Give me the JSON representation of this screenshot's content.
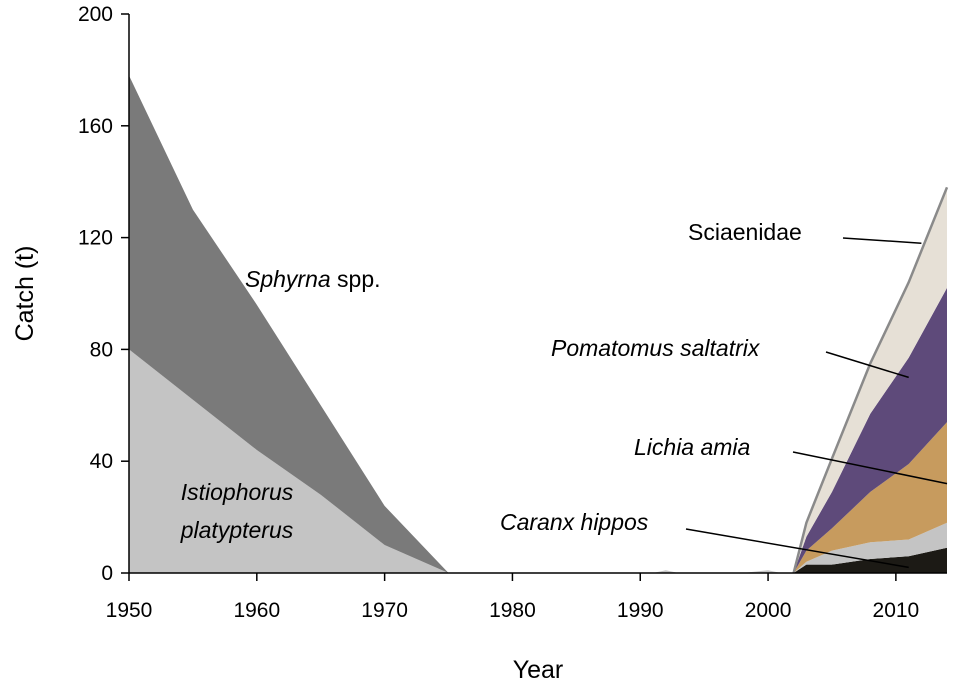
{
  "chart_data": {
    "type": "area",
    "xlabel": "Year",
    "ylabel": "Catch (t)",
    "xlim": [
      1950,
      2014
    ],
    "ylim": [
      0,
      200
    ],
    "x_ticks": [
      1950,
      1960,
      1970,
      1980,
      1990,
      2000,
      2010
    ],
    "y_ticks": [
      0,
      40,
      80,
      120,
      160,
      200
    ],
    "stacked": true,
    "series": [
      {
        "name": "Istiophorus platypterus",
        "color": "#c4c4c4",
        "points": [
          [
            1950,
            80
          ],
          [
            1955,
            62
          ],
          [
            1960,
            44
          ],
          [
            1965,
            28
          ],
          [
            1970,
            10
          ],
          [
            1975,
            0
          ],
          [
            2014,
            0
          ]
        ]
      },
      {
        "name": "Sphyrna spp.",
        "color": "#7a7a7a",
        "points": [
          [
            1950,
            98
          ],
          [
            1955,
            68
          ],
          [
            1960,
            52
          ],
          [
            1965,
            32
          ],
          [
            1970,
            14
          ],
          [
            1975,
            0
          ],
          [
            2014,
            0
          ]
        ]
      },
      {
        "name": "Caranx hippos",
        "color": "#1c1a15",
        "points": [
          [
            1975,
            0
          ],
          [
            1992,
            0
          ],
          [
            2002,
            0
          ],
          [
            2003,
            3
          ],
          [
            2005,
            3
          ],
          [
            2008,
            5
          ],
          [
            2011,
            6
          ],
          [
            2014,
            9
          ]
        ]
      },
      {
        "name": "Lichia amia",
        "color": "#c4c4c4",
        "points": [
          [
            1975,
            0
          ],
          [
            1991,
            0
          ],
          [
            1992,
            1
          ],
          [
            1993,
            0
          ],
          [
            1998,
            0
          ],
          [
            2000,
            1
          ],
          [
            2001,
            0
          ],
          [
            2002,
            0
          ],
          [
            2003,
            1
          ],
          [
            2005,
            5
          ],
          [
            2008,
            6
          ],
          [
            2011,
            6
          ],
          [
            2014,
            9
          ]
        ]
      },
      {
        "name": "Lichia amia",
        "color": "#c79b5e",
        "points": [
          [
            1975,
            0
          ],
          [
            2002,
            0
          ],
          [
            2003,
            4
          ],
          [
            2005,
            8
          ],
          [
            2008,
            18
          ],
          [
            2011,
            27
          ],
          [
            2014,
            36
          ]
        ]
      },
      {
        "name": "Pomatomus saltatrix",
        "color": "#5e4a7a",
        "points": [
          [
            1975,
            0
          ],
          [
            2002,
            0
          ],
          [
            2003,
            5
          ],
          [
            2005,
            13
          ],
          [
            2008,
            28
          ],
          [
            2011,
            38
          ],
          [
            2014,
            48
          ]
        ]
      },
      {
        "name": "Sciaenidae",
        "color": "#e6e0d6",
        "points": [
          [
            1975,
            0
          ],
          [
            2002,
            0
          ],
          [
            2003,
            5
          ],
          [
            2005,
            12
          ],
          [
            2008,
            18
          ],
          [
            2011,
            27
          ],
          [
            2014,
            36
          ]
        ]
      }
    ],
    "annotations": [
      {
        "text_parts": [
          {
            "t": "Sphyrna",
            "italic": true
          },
          {
            "t": " spp.",
            "italic": false
          }
        ]
      },
      {
        "lines": [
          "Istiophorus",
          "platypterus"
        ],
        "italic": true
      },
      {
        "text": "Sciaenidae",
        "italic": false,
        "leader_to": [
          2012,
          118
        ]
      },
      {
        "text": "Pomatomus saltatrix",
        "italic": true,
        "leader_to": [
          2011,
          70
        ]
      },
      {
        "text": "Lichia amia",
        "italic": true,
        "leader_to": [
          2014,
          32
        ]
      },
      {
        "text": "Caranx hippos",
        "italic": true,
        "leader_to": [
          2011,
          2
        ]
      }
    ],
    "outline_color": "#8a8a8a"
  }
}
